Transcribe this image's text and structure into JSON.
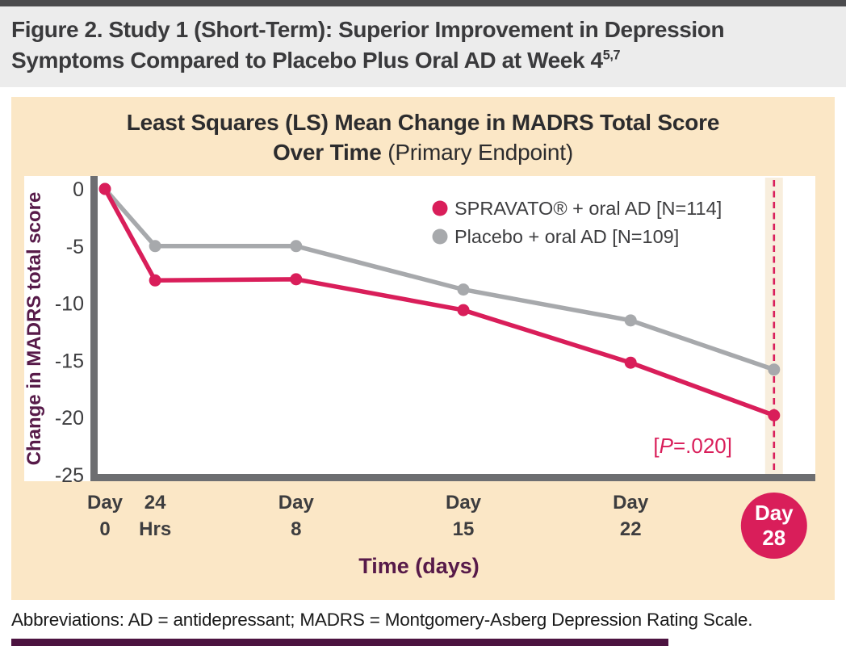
{
  "header": {
    "title": "Figure 2. Study 1 (Short-Term): Superior Improvement in Depression Symptoms Compared to Placebo Plus Oral AD at Week 4",
    "superscript": "5,7"
  },
  "chart": {
    "title_line1": "Least Squares (LS) Mean Change in MADRS Total Score",
    "title_line2_bold": "Over Time",
    "title_line2_normal": " (Primary Endpoint)"
  },
  "chart_data": {
    "type": "line",
    "title": "Least Squares (LS) Mean Change in MADRS Total Score Over Time (Primary Endpoint)",
    "xlabel": "Time (days)",
    "ylabel": "Change in MADRS total score",
    "x_days": [
      0,
      1,
      8,
      15,
      22,
      28
    ],
    "x_render_days": [
      0,
      2.1,
      8,
      15,
      22,
      28
    ],
    "x_tick_labels": [
      [
        "Day",
        "0"
      ],
      [
        "24",
        "Hrs"
      ],
      [
        "Day",
        "8"
      ],
      [
        "Day",
        "15"
      ],
      [
        "Day",
        "22"
      ],
      [
        "Day",
        "28"
      ]
    ],
    "ylim": [
      -25,
      0
    ],
    "y_ticks": [
      0,
      -5,
      -10,
      -15,
      -20,
      -25
    ],
    "grid": false,
    "legend_position": "top-right",
    "series": [
      {
        "name": "SPRAVATO® + oral AD [N=114]",
        "color": "#d91e5a",
        "values": [
          0,
          -8,
          -7.9,
          -10.6,
          -15.2,
          -19.8
        ]
      },
      {
        "name": "Placebo + oral AD [N=109]",
        "color": "#a7a9ac",
        "values": [
          0,
          -5,
          -5,
          -8.8,
          -11.5,
          -15.8
        ]
      }
    ],
    "annotation": {
      "pre": "[",
      "italic_p": "P",
      "post": "=.020]"
    },
    "highlight_day": 28
  },
  "footer": {
    "abbreviations": "Abbreviations: AD = antidepressant; MADRS = Montgomery-Asberg Depression Rating Scale."
  },
  "colors": {
    "crimson": "#d91e5a",
    "gray_series": "#a7a9ac",
    "axis": "#6d6e71",
    "maroon": "#571a49",
    "tick_text": "#3d3d3f",
    "band": "#f8eedd",
    "peach": "#fbe7c6",
    "header_bg": "#ececec",
    "header_border": "#4b4b4d",
    "header_text": "#3a3a3c",
    "bottom_bar": "#4c1340"
  }
}
